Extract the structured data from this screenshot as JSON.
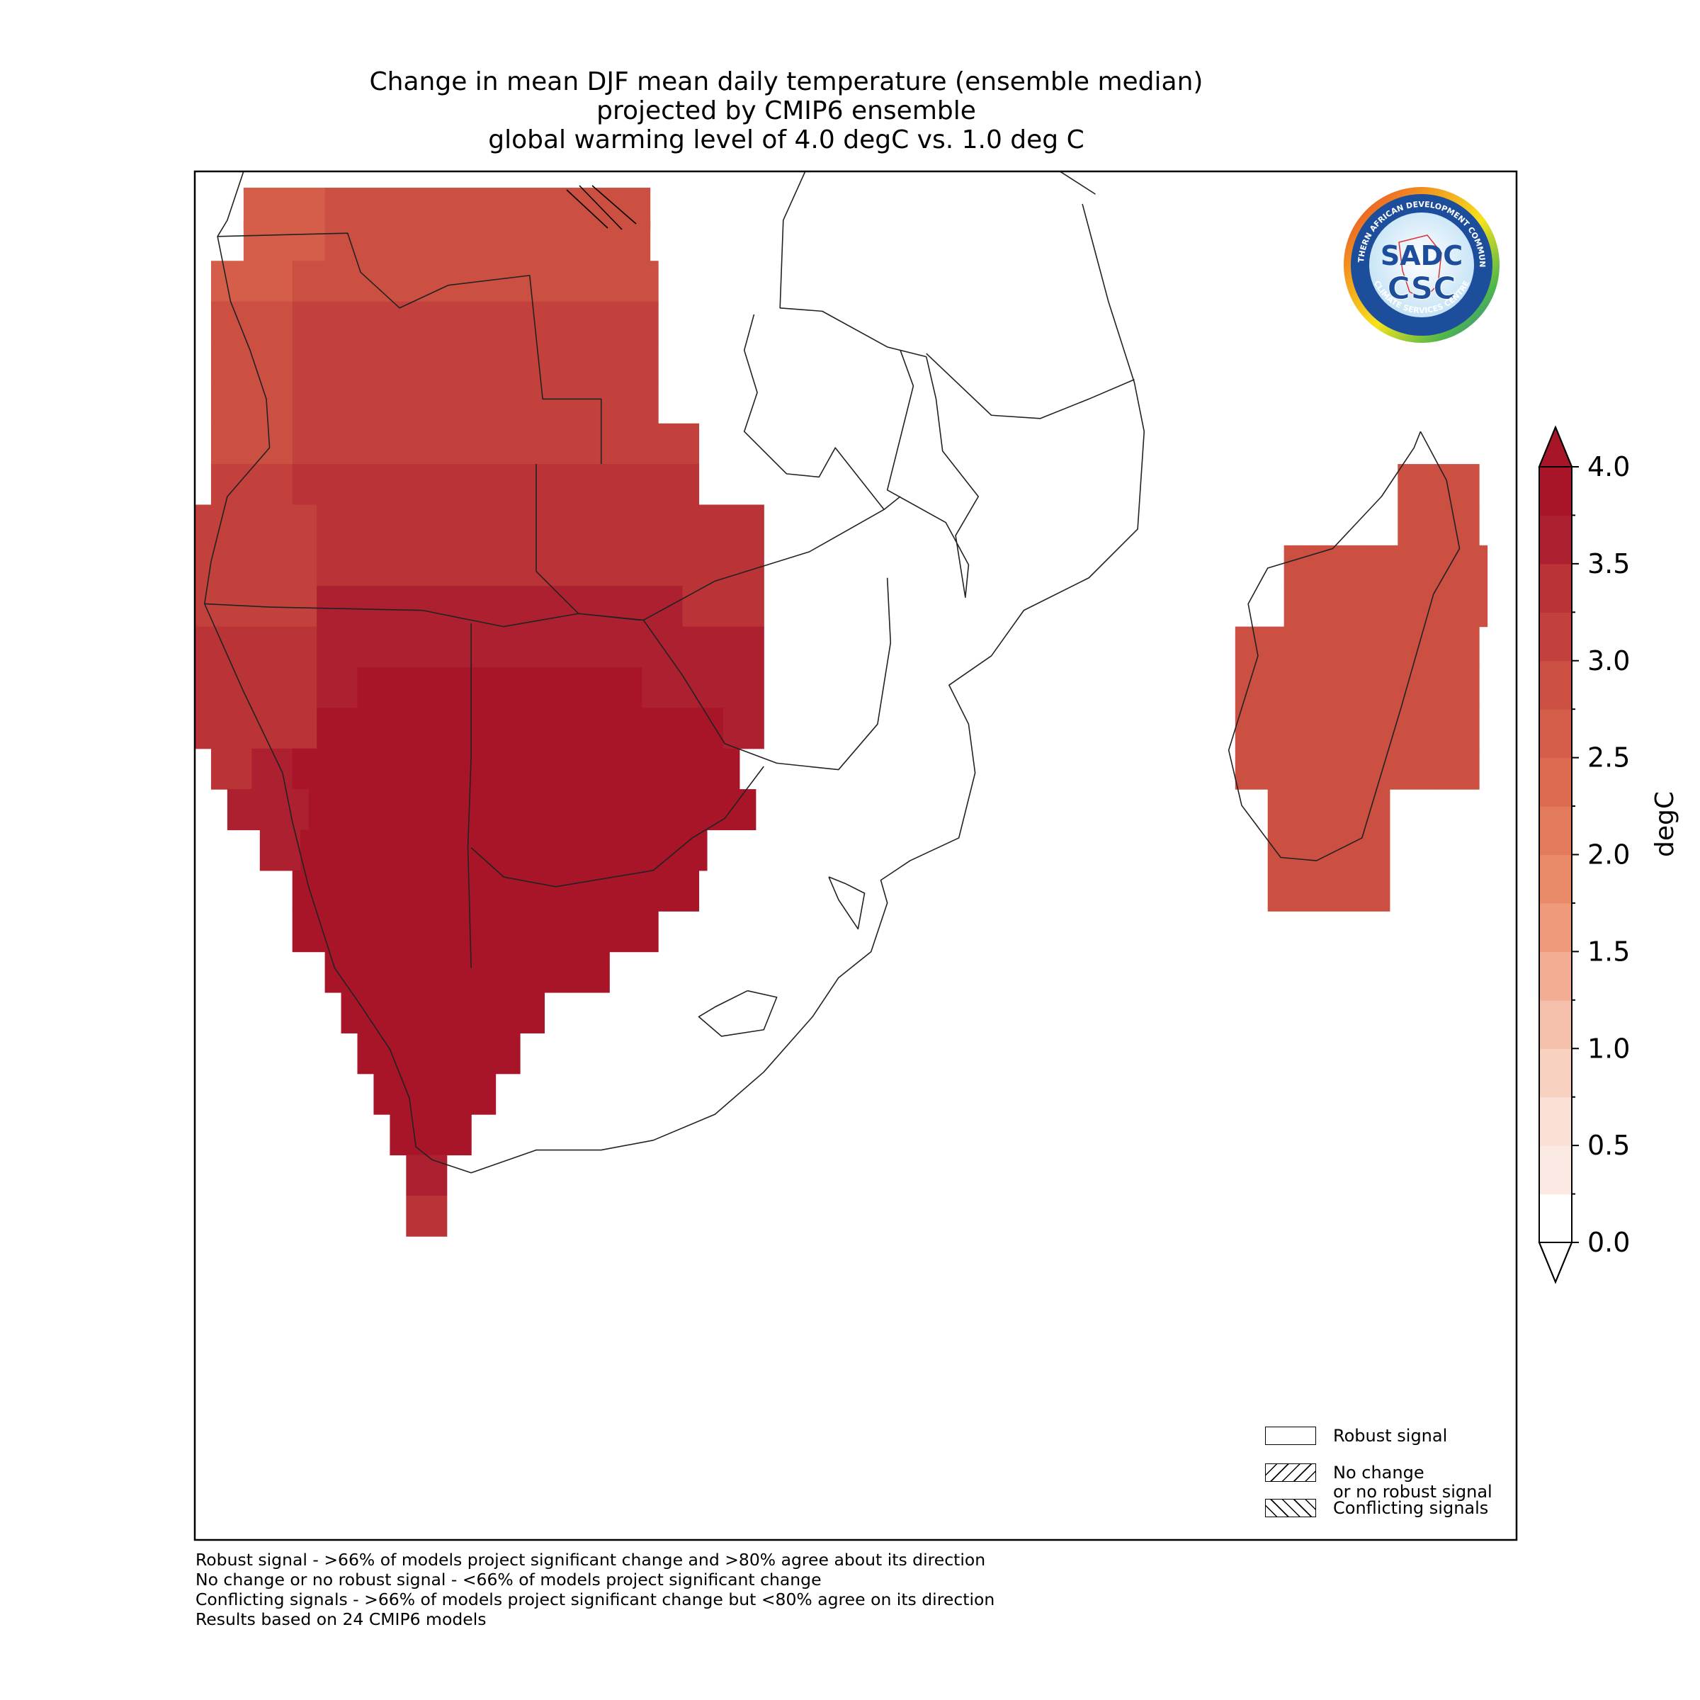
{
  "title": {
    "line1": "Change in mean DJF mean daily temperature (ensemble median)",
    "line2": "projected by CMIP6 ensemble",
    "line3": "global warming level of 4.0 degC vs. 1.0 deg C"
  },
  "colorbar": {
    "label": "degC",
    "tick_labels": [
      "0.0",
      "0.5",
      "1.0",
      "1.5",
      "2.0",
      "2.5",
      "3.0",
      "3.5",
      "4.0"
    ],
    "extend": "both",
    "colors": [
      "#ffffff",
      "#fbeae4",
      "#fae0d6",
      "#f8d1c1",
      "#f5c0ab",
      "#f2ad93",
      "#ee9a7b",
      "#e98a69",
      "#e37a5c",
      "#dc6b51",
      "#d45e49",
      "#cb5042",
      "#c3413d",
      "#b93337",
      "#ad2030",
      "#a81529"
    ],
    "over_color": "#a81529",
    "under_color": "#ffffff"
  },
  "legend": {
    "robust": "Robust signal",
    "nochange_1": "No change",
    "nochange_2": "or no robust signal",
    "conflicting": "Conflicting signals"
  },
  "notes": {
    "line1": "Robust signal - >66% of models project significant change and >80% agree about its direction",
    "line2": "No change or no robust signal - <66% of models project significant change",
    "line3": "Conflicting signals - >66% of models project significant change but <80% agree on its direction",
    "line4": "Results based on 24 CMIP6 models"
  },
  "logo": {
    "top_text": "SOUTHERN AFRICAN DEVELOPMENT COMMUNITY",
    "bottom_text": "CLIMATE SERVICES CENTRE",
    "mark": "SADC",
    "abbr": "CSC"
  }
}
